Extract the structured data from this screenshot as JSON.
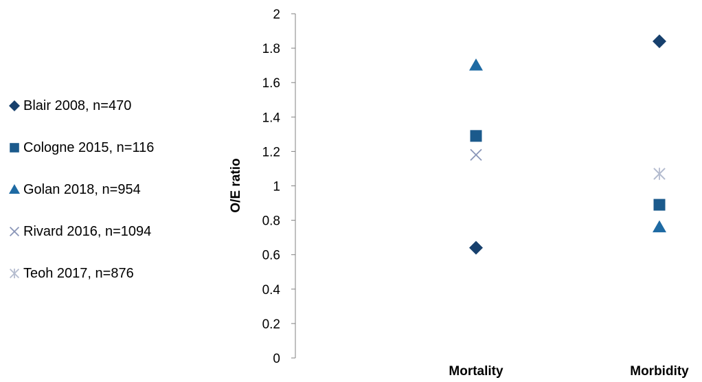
{
  "chart_data": {
    "type": "scatter",
    "categories": [
      "Mortality",
      "Morbidity"
    ],
    "ylabel": "O/E ratio",
    "xlabel": "",
    "ylim": [
      0,
      2
    ],
    "yticks": [
      "0",
      "0.2",
      "0.4",
      "0.6",
      "0.8",
      "1",
      "1.2",
      "1.4",
      "1.6",
      "1.8",
      "2"
    ],
    "grid": false,
    "legend_position": "left",
    "series": [
      {
        "name": "Blair 2008, n=470",
        "marker": "diamond",
        "color": "#17406d",
        "values": [
          0.64,
          1.84
        ]
      },
      {
        "name": "Cologne 2015, n=116",
        "marker": "square",
        "color": "#1b5a8c",
        "values": [
          1.29,
          0.89
        ]
      },
      {
        "name": "Golan 2018, n=954",
        "marker": "triangle",
        "color": "#1e6aa3",
        "values": [
          1.7,
          0.76
        ]
      },
      {
        "name": "Rivard 2016, n=1094",
        "marker": "x",
        "color": "#8a96b8",
        "values": [
          1.18,
          1.07
        ]
      },
      {
        "name": "Teoh 2017, n=876",
        "marker": "asterisk",
        "color": "#b4bccf",
        "values": [
          null,
          1.07
        ]
      }
    ]
  }
}
